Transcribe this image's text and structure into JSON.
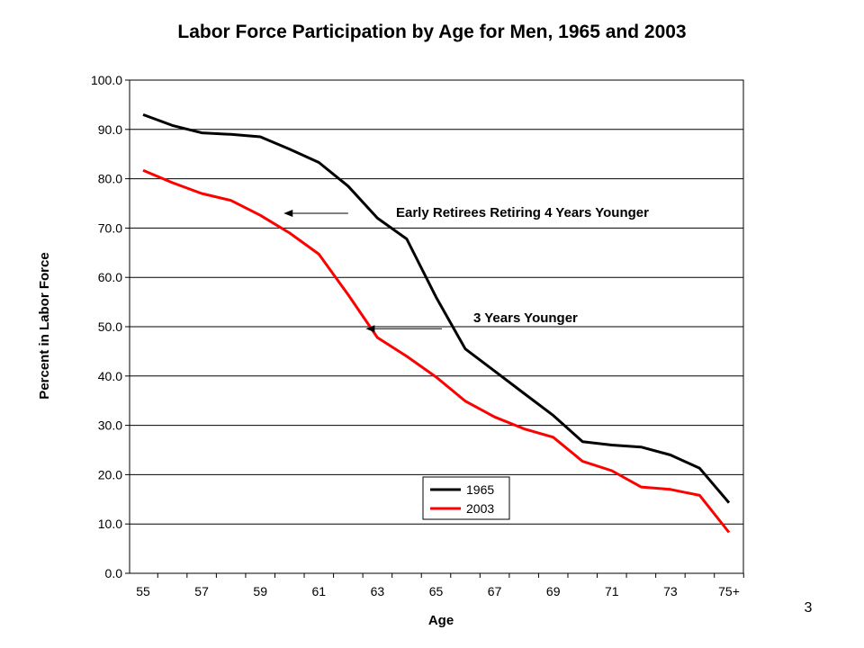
{
  "page_number": "3",
  "chart_data": {
    "type": "line",
    "title": "Labor Force Participation by Age for Men, 1965 and 2003",
    "xlabel": "Age",
    "ylabel": "Percent in Labor Force",
    "categories": [
      "55",
      "56",
      "57",
      "58",
      "59",
      "60",
      "61",
      "62",
      "63",
      "64",
      "65",
      "66",
      "67",
      "68",
      "69",
      "70",
      "71",
      "72",
      "73",
      "74",
      "75+"
    ],
    "x_tick_labels": [
      "55",
      "57",
      "59",
      "61",
      "63",
      "65",
      "67",
      "69",
      "71",
      "73",
      "75+"
    ],
    "y_tick_labels": [
      "0.0",
      "10.0",
      "20.0",
      "30.0",
      "40.0",
      "50.0",
      "60.0",
      "70.0",
      "80.0",
      "90.0",
      "100.0"
    ],
    "ylim": [
      0,
      100
    ],
    "grid": true,
    "legend_position": "bottom-center",
    "series": [
      {
        "name": "1965",
        "color": "#000000",
        "values": [
          93.0,
          90.8,
          89.3,
          89.0,
          88.5,
          86.0,
          83.3,
          78.5,
          72.0,
          67.8,
          56.0,
          45.5,
          41.0,
          36.5,
          32.0,
          26.7,
          26.0,
          25.6,
          24.0,
          21.3,
          14.3
        ]
      },
      {
        "name": "2003",
        "color": "#ff0000",
        "values": [
          81.7,
          79.2,
          77.0,
          75.6,
          72.6,
          69.0,
          64.7,
          56.5,
          47.8,
          44.0,
          39.8,
          34.9,
          31.7,
          29.3,
          27.6,
          22.7,
          20.8,
          17.5,
          17.0,
          15.8,
          8.3
        ]
      }
    ],
    "annotations": [
      {
        "text": "Early Retirees Retiring 4 Years Younger",
        "arrow_from": {
          "x": 62,
          "y": 73.0
        },
        "arrow_to": {
          "x": 59.8,
          "y": 73.0
        }
      },
      {
        "text": "3 Years Younger",
        "arrow_from": {
          "x": 65.2,
          "y": 49.6
        },
        "arrow_to": {
          "x": 62.6,
          "y": 49.6
        }
      }
    ]
  }
}
